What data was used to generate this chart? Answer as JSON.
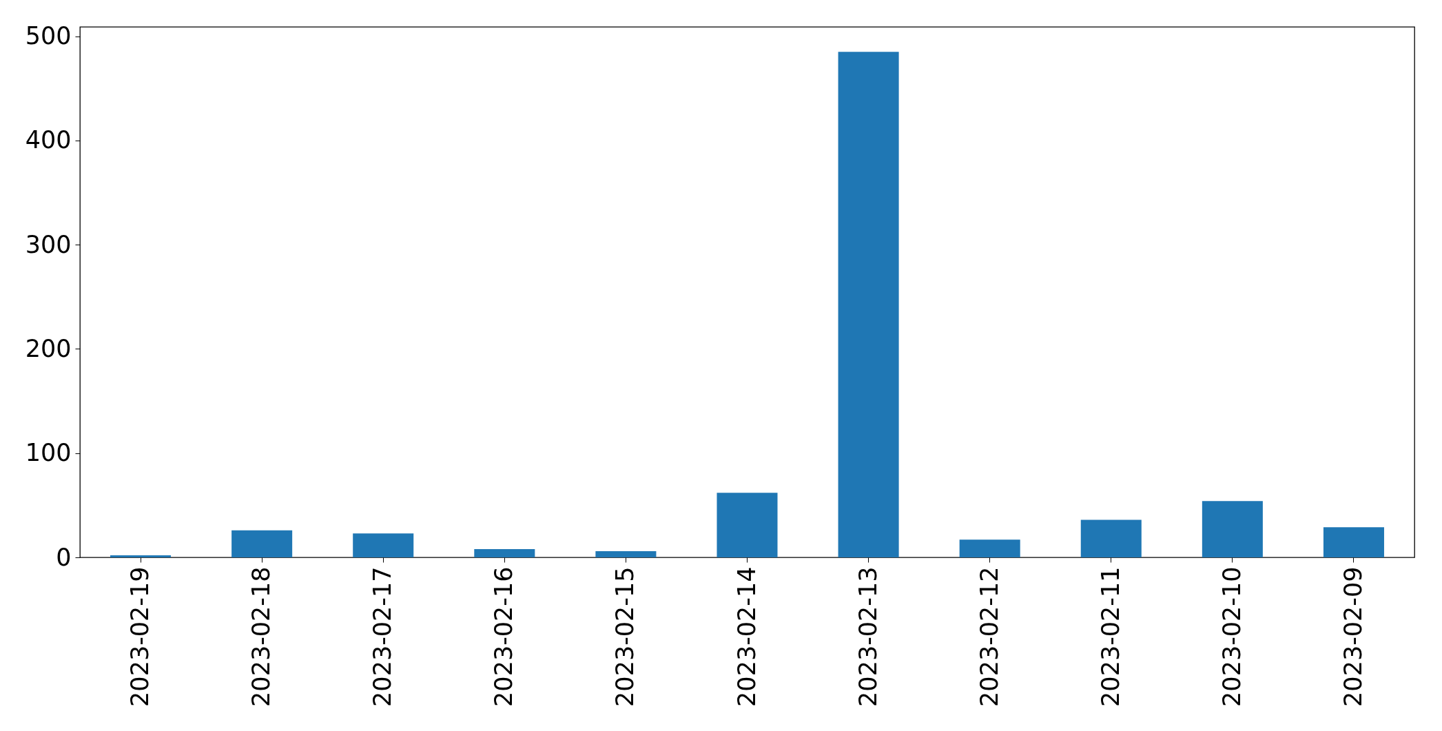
{
  "chart_data": {
    "type": "bar",
    "categories": [
      "2023-02-19",
      "2023-02-18",
      "2023-02-17",
      "2023-02-16",
      "2023-02-15",
      "2023-02-14",
      "2023-02-13",
      "2023-02-12",
      "2023-02-11",
      "2023-02-10",
      "2023-02-09"
    ],
    "values": [
      2,
      26,
      23,
      8,
      6,
      62,
      485,
      17,
      36,
      54,
      29
    ],
    "color": "#1f77b4",
    "ylim": [
      0,
      509
    ],
    "yticks": [
      0,
      100,
      200,
      300,
      400,
      500
    ],
    "grid": false
  }
}
